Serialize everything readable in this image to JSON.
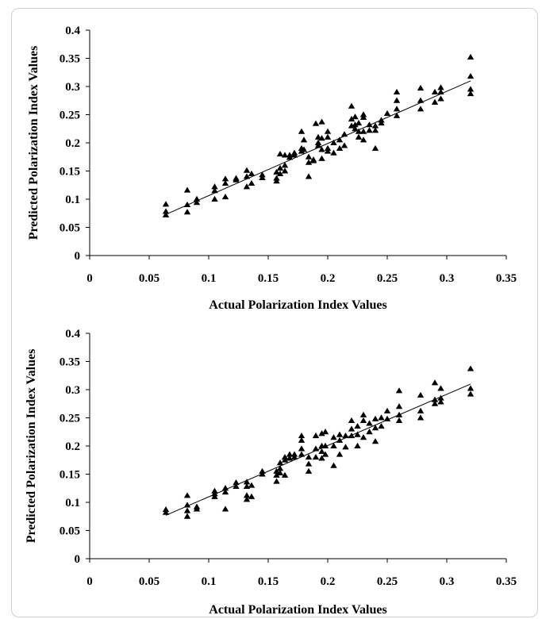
{
  "chart_data": [
    {
      "type": "scatter",
      "title": "",
      "xlabel": "Actual Polarization Index Values",
      "ylabel": "Predicted Polarization Index Values",
      "xlim": [
        0,
        0.35
      ],
      "ylim": [
        0,
        0.4
      ],
      "x_ticks": [
        "0",
        "0.05",
        "0.1",
        "0.15",
        "0.2",
        "0.25",
        "0.3",
        "0.35"
      ],
      "y_ticks": [
        "0",
        "0.05",
        "0.1",
        "0.15",
        "0.2",
        "0.25",
        "0.3",
        "0.35",
        "0.4"
      ],
      "marker": "triangle",
      "trendline": [
        [
          0.064,
          0.073
        ],
        [
          0.32,
          0.31
        ]
      ],
      "series": [
        {
          "points": [
            [
              0.064,
              0.091
            ],
            [
              0.064,
              0.078
            ],
            [
              0.064,
              0.072
            ],
            [
              0.082,
              0.116
            ],
            [
              0.082,
              0.09
            ],
            [
              0.082,
              0.077
            ],
            [
              0.09,
              0.1
            ],
            [
              0.09,
              0.094
            ],
            [
              0.105,
              0.122
            ],
            [
              0.105,
              0.115
            ],
            [
              0.105,
              0.1
            ],
            [
              0.114,
              0.136
            ],
            [
              0.114,
              0.128
            ],
            [
              0.114,
              0.104
            ],
            [
              0.123,
              0.137
            ],
            [
              0.123,
              0.134
            ],
            [
              0.132,
              0.151
            ],
            [
              0.132,
              0.14
            ],
            [
              0.132,
              0.122
            ],
            [
              0.136,
              0.145
            ],
            [
              0.136,
              0.128
            ],
            [
              0.145,
              0.143
            ],
            [
              0.145,
              0.138
            ],
            [
              0.157,
              0.148
            ],
            [
              0.157,
              0.137
            ],
            [
              0.157,
              0.132
            ],
            [
              0.16,
              0.18
            ],
            [
              0.16,
              0.155
            ],
            [
              0.16,
              0.145
            ],
            [
              0.164,
              0.178
            ],
            [
              0.164,
              0.16
            ],
            [
              0.164,
              0.15
            ],
            [
              0.168,
              0.178
            ],
            [
              0.168,
              0.174
            ],
            [
              0.172,
              0.182
            ],
            [
              0.172,
              0.178
            ],
            [
              0.178,
              0.22
            ],
            [
              0.178,
              0.19
            ],
            [
              0.178,
              0.185
            ],
            [
              0.18,
              0.205
            ],
            [
              0.18,
              0.188
            ],
            [
              0.184,
              0.175
            ],
            [
              0.184,
              0.165
            ],
            [
              0.184,
              0.14
            ],
            [
              0.188,
              0.17
            ],
            [
              0.188,
              0.168
            ],
            [
              0.19,
              0.234
            ],
            [
              0.192,
              0.21
            ],
            [
              0.192,
              0.2
            ],
            [
              0.192,
              0.195
            ],
            [
              0.195,
              0.237
            ],
            [
              0.195,
              0.208
            ],
            [
              0.195,
              0.188
            ],
            [
              0.195,
              0.172
            ],
            [
              0.2,
              0.22
            ],
            [
              0.2,
              0.21
            ],
            [
              0.2,
              0.19
            ],
            [
              0.2,
              0.185
            ],
            [
              0.205,
              0.2
            ],
            [
              0.205,
              0.182
            ],
            [
              0.21,
              0.205
            ],
            [
              0.21,
              0.19
            ],
            [
              0.214,
              0.215
            ],
            [
              0.214,
              0.195
            ],
            [
              0.22,
              0.265
            ],
            [
              0.22,
              0.242
            ],
            [
              0.22,
              0.23
            ],
            [
              0.223,
              0.246
            ],
            [
              0.223,
              0.232
            ],
            [
              0.223,
              0.225
            ],
            [
              0.226,
              0.235
            ],
            [
              0.226,
              0.22
            ],
            [
              0.226,
              0.21
            ],
            [
              0.23,
              0.25
            ],
            [
              0.23,
              0.245
            ],
            [
              0.23,
              0.22
            ],
            [
              0.23,
              0.205
            ],
            [
              0.235,
              0.232
            ],
            [
              0.235,
              0.222
            ],
            [
              0.24,
              0.23
            ],
            [
              0.24,
              0.222
            ],
            [
              0.24,
              0.19
            ],
            [
              0.245,
              0.24
            ],
            [
              0.245,
              0.235
            ],
            [
              0.25,
              0.252
            ],
            [
              0.258,
              0.29
            ],
            [
              0.258,
              0.275
            ],
            [
              0.258,
              0.26
            ],
            [
              0.258,
              0.248
            ],
            [
              0.278,
              0.297
            ],
            [
              0.278,
              0.275
            ],
            [
              0.278,
              0.26
            ],
            [
              0.29,
              0.29
            ],
            [
              0.29,
              0.272
            ],
            [
              0.295,
              0.298
            ],
            [
              0.295,
              0.29
            ],
            [
              0.295,
              0.278
            ],
            [
              0.32,
              0.352
            ],
            [
              0.32,
              0.318
            ],
            [
              0.32,
              0.295
            ],
            [
              0.32,
              0.287
            ]
          ]
        }
      ]
    },
    {
      "type": "scatter",
      "title": "",
      "xlabel": "Actual Polarization Index Values",
      "ylabel": "Predicted Polarization Index Values",
      "xlim": [
        0,
        0.35
      ],
      "ylim": [
        0,
        0.4
      ],
      "x_ticks": [
        "0",
        "0.05",
        "0.1",
        "0.15",
        "0.2",
        "0.25",
        "0.3",
        "0.35"
      ],
      "y_ticks": [
        "0",
        "0.05",
        "0.1",
        "0.15",
        "0.2",
        "0.25",
        "0.3",
        "0.35",
        "0.4"
      ],
      "marker": "triangle",
      "trendline": [
        [
          0.064,
          0.077
        ],
        [
          0.32,
          0.31
        ]
      ],
      "series": [
        {
          "points": [
            [
              0.064,
              0.087
            ],
            [
              0.064,
              0.082
            ],
            [
              0.082,
              0.112
            ],
            [
              0.082,
              0.095
            ],
            [
              0.082,
              0.085
            ],
            [
              0.082,
              0.075
            ],
            [
              0.09,
              0.092
            ],
            [
              0.09,
              0.088
            ],
            [
              0.105,
              0.12
            ],
            [
              0.105,
              0.115
            ],
            [
              0.105,
              0.11
            ],
            [
              0.114,
              0.125
            ],
            [
              0.114,
              0.118
            ],
            [
              0.114,
              0.088
            ],
            [
              0.123,
              0.135
            ],
            [
              0.123,
              0.128
            ],
            [
              0.132,
              0.136
            ],
            [
              0.132,
              0.128
            ],
            [
              0.132,
              0.112
            ],
            [
              0.132,
              0.105
            ],
            [
              0.136,
              0.13
            ],
            [
              0.136,
              0.11
            ],
            [
              0.145,
              0.155
            ],
            [
              0.145,
              0.15
            ],
            [
              0.157,
              0.155
            ],
            [
              0.157,
              0.148
            ],
            [
              0.157,
              0.137
            ],
            [
              0.16,
              0.17
            ],
            [
              0.16,
              0.16
            ],
            [
              0.16,
              0.152
            ],
            [
              0.164,
              0.18
            ],
            [
              0.164,
              0.175
            ],
            [
              0.164,
              0.148
            ],
            [
              0.168,
              0.185
            ],
            [
              0.168,
              0.178
            ],
            [
              0.172,
              0.185
            ],
            [
              0.172,
              0.18
            ],
            [
              0.178,
              0.218
            ],
            [
              0.178,
              0.21
            ],
            [
              0.178,
              0.195
            ],
            [
              0.178,
              0.185
            ],
            [
              0.184,
              0.18
            ],
            [
              0.184,
              0.168
            ],
            [
              0.184,
              0.155
            ],
            [
              0.19,
              0.218
            ],
            [
              0.19,
              0.195
            ],
            [
              0.19,
              0.18
            ],
            [
              0.195,
              0.222
            ],
            [
              0.195,
              0.2
            ],
            [
              0.195,
              0.19
            ],
            [
              0.195,
              0.178
            ],
            [
              0.198,
              0.225
            ],
            [
              0.198,
              0.2
            ],
            [
              0.198,
              0.185
            ],
            [
              0.205,
              0.215
            ],
            [
              0.205,
              0.2
            ],
            [
              0.205,
              0.165
            ],
            [
              0.21,
              0.22
            ],
            [
              0.21,
              0.21
            ],
            [
              0.21,
              0.185
            ],
            [
              0.215,
              0.218
            ],
            [
              0.215,
              0.198
            ],
            [
              0.22,
              0.245
            ],
            [
              0.22,
              0.23
            ],
            [
              0.22,
              0.218
            ],
            [
              0.225,
              0.235
            ],
            [
              0.225,
              0.22
            ],
            [
              0.225,
              0.2
            ],
            [
              0.23,
              0.255
            ],
            [
              0.23,
              0.245
            ],
            [
              0.23,
              0.215
            ],
            [
              0.235,
              0.24
            ],
            [
              0.235,
              0.225
            ],
            [
              0.24,
              0.248
            ],
            [
              0.24,
              0.232
            ],
            [
              0.24,
              0.208
            ],
            [
              0.245,
              0.25
            ],
            [
              0.245,
              0.235
            ],
            [
              0.25,
              0.262
            ],
            [
              0.25,
              0.248
            ],
            [
              0.26,
              0.298
            ],
            [
              0.26,
              0.27
            ],
            [
              0.26,
              0.255
            ],
            [
              0.26,
              0.245
            ],
            [
              0.278,
              0.29
            ],
            [
              0.278,
              0.262
            ],
            [
              0.278,
              0.25
            ],
            [
              0.29,
              0.312
            ],
            [
              0.29,
              0.282
            ],
            [
              0.29,
              0.275
            ],
            [
              0.295,
              0.302
            ],
            [
              0.295,
              0.285
            ],
            [
              0.295,
              0.278
            ],
            [
              0.32,
              0.337
            ],
            [
              0.32,
              0.302
            ],
            [
              0.32,
              0.292
            ]
          ]
        }
      ]
    }
  ]
}
